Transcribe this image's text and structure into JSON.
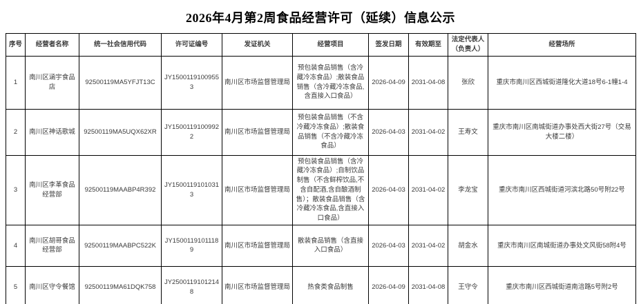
{
  "page": {
    "title": "2026年4月第2周食品经营许可（延续）信息公示"
  },
  "table": {
    "column_keys": [
      "serial",
      "operator-name",
      "credit-code",
      "license-number",
      "issuing-authority",
      "business-items",
      "issue-date",
      "valid-until",
      "legal-representative",
      "business-address"
    ],
    "headers": [
      "序号",
      "经营者名称",
      "统一社会信用代码",
      "许可证编号",
      "发证机关",
      "经营项目",
      "签发日期",
      "有效期至",
      "法定代表人（负责人）",
      "经营场所"
    ],
    "rows": [
      {
        "serial": "1",
        "operator_name": "南川区涵宇食品店",
        "credit_code": "92500119MA5YFJT13C",
        "license_number": "JY15001191009553",
        "issuing_authority": "南川区市场监督管理局",
        "business_items": "预包装食品销售（含冷藏冷冻食品）;散装食品销售（含冷藏冷冻食品,含直接入口食品）",
        "issue_date": "2026-04-09",
        "valid_until": "2031-04-08",
        "legal_representative": "张欣",
        "business_address": "重庆市南川区西城街道隆化大道18号6-1幢1-4"
      },
      {
        "serial": "2",
        "operator_name": "南川区神话歌城",
        "credit_code": "92500119MA5UQX62XR",
        "license_number": "JY15001191009922",
        "issuing_authority": "南川区市场监督管理局",
        "business_items": "预包装食品销售（不含冷藏冷冻食品）;散装食品销售（不含冷藏冷冻食品）",
        "issue_date": "2026-04-03",
        "valid_until": "2031-04-02",
        "legal_representative": "王寿文",
        "business_address": "重庆市南川区南城街道办事处西大街27号（交易大楼二楼）"
      },
      {
        "serial": "3",
        "operator_name": "南川区李革食品经营部",
        "credit_code": "92500119MAABP4R392",
        "license_number": "JY15001191010313",
        "issuing_authority": "南川区市场监督管理局",
        "business_items": "预包装食品销售（含冷藏冷冻食品）;自制饮品制售（不含鲜榨饮品,不含自配酒,含自酿酒制售）；散装食品销售（含冷藏冷冻食品,含直接入口食品）",
        "issue_date": "2026-04-03",
        "valid_until": "2031-04-02",
        "legal_representative": "李龙宝",
        "business_address": "重庆市南川区西城街道河滨北路50号附22号"
      },
      {
        "serial": "4",
        "operator_name": "南川区胡哥食品经营部",
        "credit_code": "92500119MAABPC522K",
        "license_number": "JY15001191011189",
        "issuing_authority": "南川区市场监督管理局",
        "business_items": "散装食品销售（含直接入口食品）",
        "issue_date": "2026-04-03",
        "valid_until": "2031-04-02",
        "legal_representative": "胡金水",
        "business_address": "重庆市南川区南城街道办事处文风街58附4号"
      },
      {
        "serial": "5",
        "operator_name": "南川区守令餐馆",
        "credit_code": "92500119MA61DQK758",
        "license_number": "JY25001191012148",
        "issuing_authority": "南川区市场监督管理局",
        "business_items": "热食类食品制售",
        "issue_date": "2026-04-09",
        "valid_until": "2031-04-08",
        "legal_representative": "王守令",
        "business_address": "重庆市南川区西城街道南涪路5号附2号"
      }
    ]
  }
}
